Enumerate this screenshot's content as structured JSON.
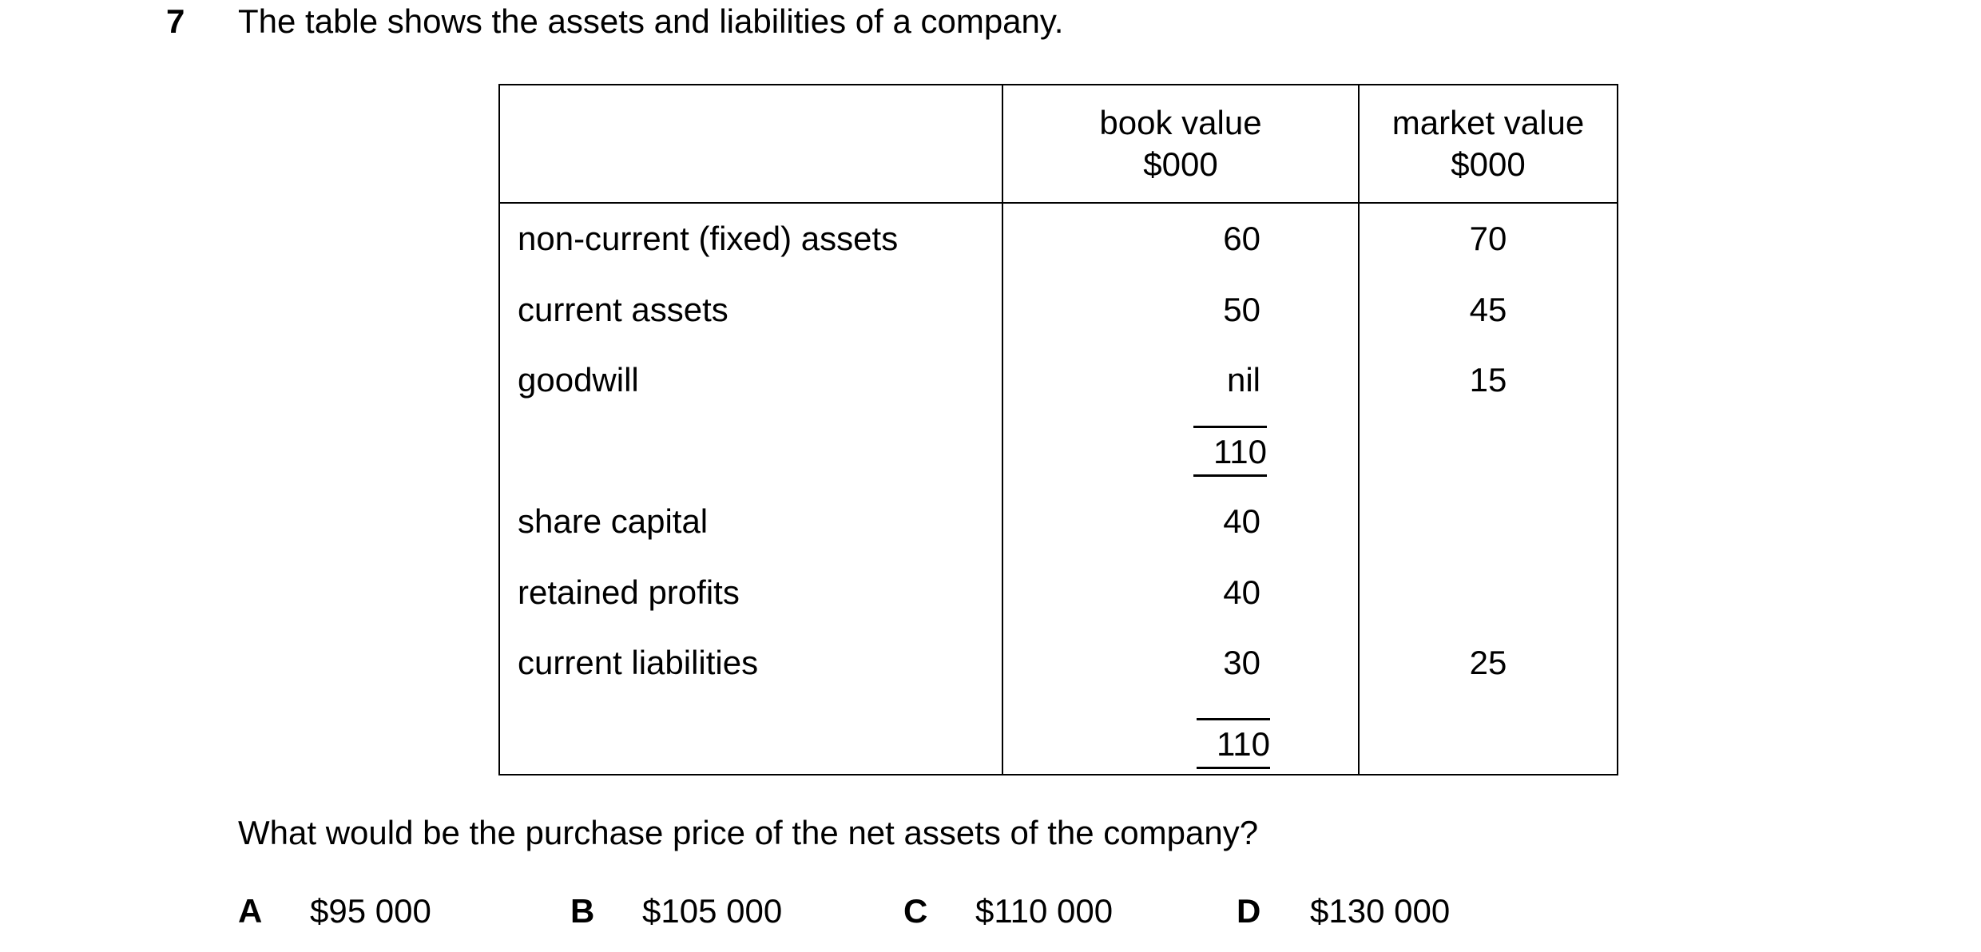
{
  "question": {
    "number": "7",
    "text": "The table shows the assets and liabilities of a company.",
    "prompt": "What would be the purchase price of the net assets of the company?"
  },
  "table": {
    "headers": [
      "",
      "book value\n$000",
      "market value\n$000"
    ],
    "rows": [
      {
        "label": "non-current (fixed) assets",
        "book": "60",
        "market": "70"
      },
      {
        "label": "current assets",
        "book": "50",
        "market": "45"
      },
      {
        "label": "goodwill",
        "book": "nil",
        "market": "15"
      },
      {
        "label": "",
        "book": "110",
        "market": ""
      },
      {
        "label": "share capital",
        "book": "40",
        "market": ""
      },
      {
        "label": "retained profits",
        "book": "40",
        "market": ""
      },
      {
        "label": "current liabilities",
        "book": "30",
        "market": "25"
      },
      {
        "label": "",
        "book": "110",
        "market": ""
      }
    ]
  },
  "options": [
    {
      "letter": "A",
      "value": "$95 000"
    },
    {
      "letter": "B",
      "value": "$105 000"
    },
    {
      "letter": "C",
      "value": "$110 000"
    },
    {
      "letter": "D",
      "value": "$130 000"
    }
  ]
}
